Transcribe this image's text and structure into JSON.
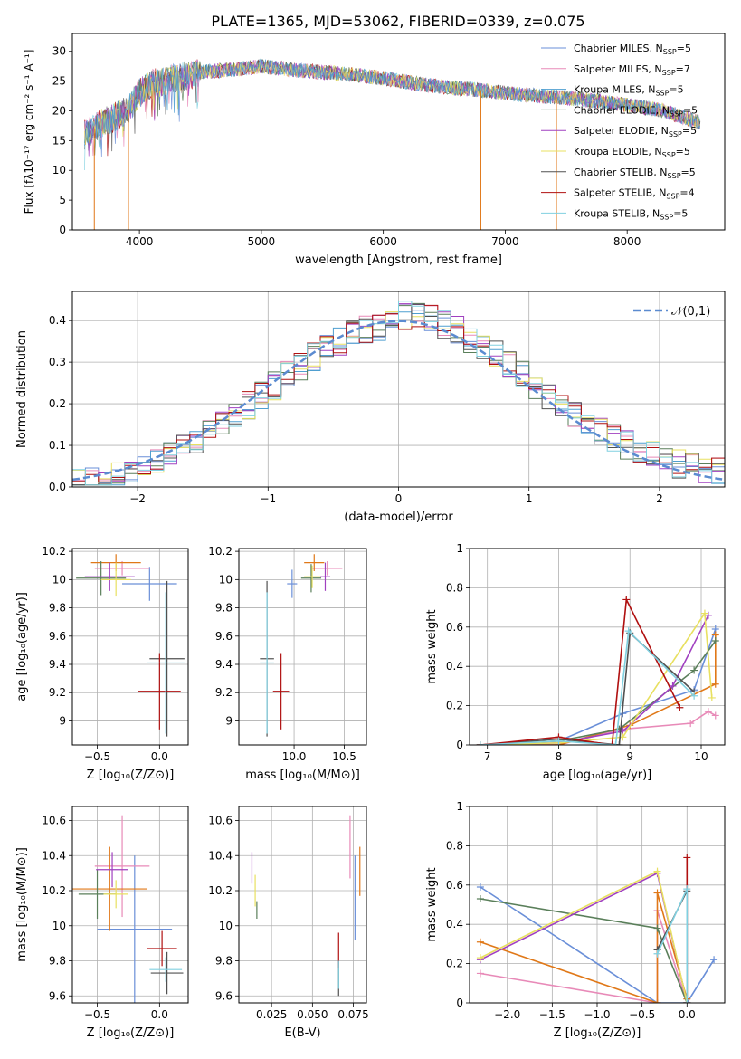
{
  "figure_title": "PLATE=1365, MJD=53062, FIBERID=0339, z=0.075",
  "model_colors": [
    "#6a8fd8",
    "#e88ab8",
    "#4f9fd0",
    "#5a7f5a",
    "#a040c0",
    "#e8e060",
    "#505050",
    "#b01010",
    "#80d0e0"
  ],
  "chart_data": [
    {
      "id": "spectrum",
      "type": "line",
      "title": "PLATE=1365, MJD=53062, FIBERID=0339, z=0.075",
      "xlabel": "wavelength [Angstrom, rest frame]",
      "ylabel": "Flux [fλ10⁻¹⁷ erg cm⁻² s⁻¹ A⁻¹]",
      "xlim": [
        3450,
        8800
      ],
      "ylim": [
        0,
        33
      ],
      "xticks": [
        4000,
        5000,
        6000,
        7000,
        8000
      ],
      "yticks": [
        0,
        5,
        10,
        15,
        20,
        25,
        30
      ],
      "grid": false,
      "legend_position": "upper-right",
      "legend": [
        {
          "label": "Chabrier MILES, N",
          "sub": "SSP",
          "suffix": "=5",
          "color": "#6a8fd8"
        },
        {
          "label": "Salpeter MILES, N",
          "sub": "SSP",
          "suffix": "=7",
          "color": "#e88ab8"
        },
        {
          "label": "Kroupa MILES, N",
          "sub": "SSP",
          "suffix": "=5",
          "color": "#4f9fd0"
        },
        {
          "label": "Chabrier ELODIE, N",
          "sub": "SSP",
          "suffix": "=5",
          "color": "#5a7f5a"
        },
        {
          "label": "Salpeter ELODIE, N",
          "sub": "SSP",
          "suffix": "=5",
          "color": "#a040c0"
        },
        {
          "label": "Kroupa ELODIE, N",
          "sub": "SSP",
          "suffix": "=5",
          "color": "#e8e060"
        },
        {
          "label": "Chabrier STELIB, N",
          "sub": "SSP",
          "suffix": "=5",
          "color": "#505050"
        },
        {
          "label": "Salpeter STELIB, N",
          "sub": "SSP",
          "suffix": "=4",
          "color": "#b01010"
        },
        {
          "label": "Kroupa STELIB, N",
          "sub": "SSP",
          "suffix": "=5",
          "color": "#80d0e0"
        }
      ],
      "continuum_points": [
        [
          3550,
          16
        ],
        [
          3700,
          18
        ],
        [
          3900,
          20
        ],
        [
          4000,
          23
        ],
        [
          4100,
          24.5
        ],
        [
          4300,
          25.5
        ],
        [
          4500,
          26.5
        ],
        [
          4800,
          27
        ],
        [
          5000,
          27.5
        ],
        [
          5200,
          27
        ],
        [
          5500,
          26.5
        ],
        [
          5800,
          26
        ],
        [
          6000,
          25.5
        ],
        [
          6300,
          24.5
        ],
        [
          6500,
          24
        ],
        [
          6800,
          23.5
        ],
        [
          7000,
          23
        ],
        [
          7300,
          22.5
        ],
        [
          7600,
          22
        ],
        [
          8000,
          21
        ],
        [
          8300,
          20
        ],
        [
          8600,
          18
        ]
      ],
      "absorption_drops": [
        [
          3630,
          0
        ],
        [
          3910,
          0
        ],
        [
          6800,
          0
        ],
        [
          7420,
          0
        ],
        [
          3910,
          8.5
        ]
      ]
    },
    {
      "id": "residuals",
      "type": "histogram",
      "xlabel": "(data-model)/error",
      "ylabel": "Normed distribution",
      "xlim": [
        -2.5,
        2.5
      ],
      "ylim": [
        0,
        0.47
      ],
      "xticks": [
        -2,
        -1,
        0,
        1,
        2
      ],
      "yticks": [
        0.0,
        0.1,
        0.2,
        0.3,
        0.4
      ],
      "grid": true,
      "legend_position": "upper-right",
      "legend": [
        {
          "label": "𝒩(0,1)",
          "color": "#5b8bd0",
          "style": "dashed"
        }
      ],
      "gaussian": {
        "mean": 0,
        "sigma": 1
      },
      "bin_width": 0.1
    },
    {
      "id": "age-vs-z",
      "type": "errorbar",
      "xlabel": "Z [log₁₀(Z/Z⊙)]",
      "ylabel": "age  [log₁₀(age/yr)]",
      "xlim": [
        -0.7,
        0.23
      ],
      "ylim": [
        8.83,
        10.22
      ],
      "xticks": [
        -0.5,
        0.0
      ],
      "xticklabels": [
        "−0.5",
        "0.0"
      ],
      "yticks": [
        9.0,
        9.2,
        9.4,
        9.6,
        9.8,
        10.0,
        10.2
      ],
      "grid": true,
      "points": [
        {
          "x": -0.08,
          "y": 9.97,
          "xerr": 0.22,
          "yerr": 0.12,
          "color": "#6a8fd8"
        },
        {
          "x": -0.3,
          "y": 10.08,
          "xerr": 0.22,
          "yerr": 0.05,
          "color": "#e88ab8"
        },
        {
          "x": -0.35,
          "y": 10.12,
          "xerr": 0.2,
          "yerr": 0.06,
          "color": "#e07818"
        },
        {
          "x": -0.47,
          "y": 10.01,
          "xerr": 0.2,
          "yerr": 0.12,
          "color": "#5a7f5a"
        },
        {
          "x": -0.4,
          "y": 10.02,
          "xerr": 0.2,
          "yerr": 0.1,
          "color": "#a040c0"
        },
        {
          "x": -0.35,
          "y": 10.0,
          "xerr": 0.12,
          "yerr": 0.12,
          "color": "#e8e060"
        },
        {
          "x": 0.06,
          "y": 9.44,
          "xerr": 0.14,
          "yerr": 0.55,
          "color": "#505050"
        },
        {
          "x": 0.0,
          "y": 9.21,
          "xerr": 0.17,
          "yerr": 0.27,
          "color": "#b01010"
        },
        {
          "x": 0.05,
          "y": 9.41,
          "xerr": 0.15,
          "yerr": 0.5,
          "color": "#80d0e0"
        }
      ]
    },
    {
      "id": "age-vs-mass",
      "type": "errorbar",
      "xlabel": "mass [log₁₀(M/M⊙)]",
      "ylabel": "",
      "xlim": [
        9.45,
        10.72
      ],
      "ylim": [
        8.83,
        10.22
      ],
      "xticks": [
        10.0,
        10.5
      ],
      "xticklabels": [
        "10.0",
        "10.5"
      ],
      "yticks": [
        9.0,
        9.2,
        9.4,
        9.6,
        9.8,
        10.0,
        10.2
      ],
      "grid": true,
      "points": [
        {
          "x": 9.98,
          "y": 9.97,
          "xerr": 0.05,
          "yerr": 0.1,
          "color": "#6a8fd8"
        },
        {
          "x": 10.33,
          "y": 10.08,
          "xerr": 0.15,
          "yerr": 0.05,
          "color": "#e88ab8"
        },
        {
          "x": 10.2,
          "y": 10.12,
          "xerr": 0.1,
          "yerr": 0.06,
          "color": "#e07818"
        },
        {
          "x": 10.17,
          "y": 10.01,
          "xerr": 0.1,
          "yerr": 0.1,
          "color": "#5a7f5a"
        },
        {
          "x": 10.31,
          "y": 10.02,
          "xerr": 0.05,
          "yerr": 0.1,
          "color": "#a040c0"
        },
        {
          "x": 10.18,
          "y": 10.02,
          "xerr": 0.08,
          "yerr": 0.08,
          "color": "#e8e060"
        },
        {
          "x": 9.73,
          "y": 9.44,
          "xerr": 0.07,
          "yerr": 0.55,
          "color": "#505050"
        },
        {
          "x": 9.87,
          "y": 9.21,
          "xerr": 0.08,
          "yerr": 0.27,
          "color": "#b01010"
        },
        {
          "x": 9.73,
          "y": 9.41,
          "xerr": 0.07,
          "yerr": 0.5,
          "color": "#80d0e0"
        }
      ]
    },
    {
      "id": "mass-weight-vs-age",
      "type": "line",
      "xlabel": "age  [log₁₀(age/yr)]",
      "ylabel": "mass weight",
      "xlim": [
        6.75,
        10.33
      ],
      "ylim": [
        0,
        1.0
      ],
      "xticks": [
        7,
        8,
        9,
        10
      ],
      "yticks": [
        0.0,
        0.2,
        0.4,
        0.6,
        0.8,
        1.0
      ],
      "grid": true,
      "series": [
        {
          "color": "#6a8fd8",
          "points": [
            [
              6.9,
              0.0
            ],
            [
              8.0,
              0.02
            ],
            [
              8.9,
              0.16
            ],
            [
              9.9,
              0.28
            ],
            [
              10.2,
              0.59
            ]
          ]
        },
        {
          "color": "#e88ab8",
          "points": [
            [
              6.9,
              0.0
            ],
            [
              8.0,
              0.0
            ],
            [
              8.9,
              0.08
            ],
            [
              9.85,
              0.11
            ],
            [
              10.1,
              0.17
            ],
            [
              10.2,
              0.15
            ]
          ]
        },
        {
          "color": "#e07818",
          "points": [
            [
              6.9,
              0.0
            ],
            [
              8.0,
              0.0
            ],
            [
              9.0,
              0.1
            ],
            [
              10.2,
              0.31
            ],
            [
              10.2,
              0.56
            ]
          ]
        },
        {
          "color": "#5a7f5a",
          "points": [
            [
              6.9,
              0.0
            ],
            [
              8.0,
              0.02
            ],
            [
              8.85,
              0.08
            ],
            [
              9.9,
              0.38
            ],
            [
              10.2,
              0.53
            ]
          ]
        },
        {
          "color": "#a040c0",
          "points": [
            [
              6.9,
              0.0
            ],
            [
              8.0,
              0.01
            ],
            [
              8.9,
              0.07
            ],
            [
              9.6,
              0.3
            ],
            [
              10.1,
              0.66
            ]
          ]
        },
        {
          "color": "#e8e060",
          "points": [
            [
              6.9,
              0.0
            ],
            [
              8.0,
              0.01
            ],
            [
              8.9,
              0.04
            ],
            [
              10.05,
              0.67
            ],
            [
              10.15,
              0.24
            ]
          ]
        },
        {
          "color": "#505050",
          "points": [
            [
              6.9,
              0.0
            ],
            [
              8.0,
              0.03
            ],
            [
              8.85,
              0.0
            ],
            [
              9.0,
              0.57
            ],
            [
              9.9,
              0.27
            ]
          ]
        },
        {
          "color": "#b01010",
          "points": [
            [
              6.9,
              0.0
            ],
            [
              8.0,
              0.04
            ],
            [
              8.75,
              0.0
            ],
            [
              8.95,
              0.74
            ],
            [
              9.7,
              0.19
            ]
          ]
        },
        {
          "color": "#80d0e0",
          "points": [
            [
              6.9,
              0.0
            ],
            [
              8.0,
              0.02
            ],
            [
              8.8,
              0.0
            ],
            [
              8.98,
              0.58
            ],
            [
              9.9,
              0.25
            ]
          ]
        }
      ]
    },
    {
      "id": "mass-vs-z",
      "type": "errorbar",
      "xlabel": "Z [log₁₀(Z/Z⊙)]",
      "ylabel": "mass [log₁₀(M/M⊙)]",
      "xlim": [
        -0.7,
        0.23
      ],
      "ylim": [
        9.56,
        10.68
      ],
      "xticks": [
        -0.5,
        0.0
      ],
      "xticklabels": [
        "−0.5",
        "0.0"
      ],
      "yticks": [
        9.6,
        9.8,
        10.0,
        10.2,
        10.4,
        10.6
      ],
      "grid": true,
      "points": [
        {
          "x": -0.2,
          "y": 9.98,
          "xerr": 0.3,
          "yerr": 0.42,
          "color": "#6a8fd8"
        },
        {
          "x": -0.3,
          "y": 10.34,
          "xerr": 0.22,
          "yerr": 0.29,
          "color": "#e88ab8"
        },
        {
          "x": -0.4,
          "y": 10.21,
          "xerr": 0.3,
          "yerr": 0.24,
          "color": "#e07818"
        },
        {
          "x": -0.5,
          "y": 10.18,
          "xerr": 0.15,
          "yerr": 0.14,
          "color": "#5a7f5a"
        },
        {
          "x": -0.38,
          "y": 10.32,
          "xerr": 0.13,
          "yerr": 0.1,
          "color": "#a040c0"
        },
        {
          "x": -0.35,
          "y": 10.18,
          "xerr": 0.1,
          "yerr": 0.08,
          "color": "#e8e060"
        },
        {
          "x": 0.06,
          "y": 9.73,
          "xerr": 0.13,
          "yerr": 0.12,
          "color": "#505050"
        },
        {
          "x": 0.02,
          "y": 9.87,
          "xerr": 0.12,
          "yerr": 0.1,
          "color": "#b01010"
        },
        {
          "x": 0.05,
          "y": 9.75,
          "xerr": 0.13,
          "yerr": 0.07,
          "color": "#80d0e0"
        }
      ]
    },
    {
      "id": "mass-vs-ebv",
      "type": "errorbar",
      "xlabel": "E(B-V)",
      "ylabel": "",
      "xlim": [
        0.005,
        0.083
      ],
      "ylim": [
        9.56,
        10.68
      ],
      "xticks": [
        0.025,
        0.05,
        0.075
      ],
      "xticklabels": [
        "0.025",
        "0.050",
        "0.075"
      ],
      "yticks": [
        9.6,
        9.8,
        10.0,
        10.2,
        10.4,
        10.6
      ],
      "grid": true,
      "points": [
        {
          "x": 0.076,
          "y": 10.16,
          "xerr": 0,
          "yerr": 0.24,
          "color": "#6a8fd8"
        },
        {
          "x": 0.073,
          "y": 10.45,
          "xerr": 0,
          "yerr": 0.18,
          "color": "#e88ab8"
        },
        {
          "x": 0.079,
          "y": 10.31,
          "xerr": 0,
          "yerr": 0.14,
          "color": "#e07818"
        },
        {
          "x": 0.016,
          "y": 10.09,
          "xerr": 0,
          "yerr": 0.05,
          "color": "#5a7f5a"
        },
        {
          "x": 0.013,
          "y": 10.33,
          "xerr": 0,
          "yerr": 0.09,
          "color": "#a040c0"
        },
        {
          "x": 0.015,
          "y": 10.2,
          "xerr": 0,
          "yerr": 0.09,
          "color": "#e8e060"
        },
        {
          "x": 0.066,
          "y": 9.7,
          "xerr": 0,
          "yerr": 0.1,
          "color": "#505050"
        },
        {
          "x": 0.066,
          "y": 9.86,
          "xerr": 0,
          "yerr": 0.1,
          "color": "#b01010"
        },
        {
          "x": 0.066,
          "y": 9.72,
          "xerr": 0,
          "yerr": 0.08,
          "color": "#80d0e0"
        }
      ]
    },
    {
      "id": "mass-weight-vs-z",
      "type": "line",
      "xlabel": "Z [log₁₀(Z/Z⊙)]",
      "ylabel": "mass weight",
      "xlim": [
        -2.42,
        0.42
      ],
      "ylim": [
        0,
        1.0
      ],
      "xticks": [
        -2.0,
        -1.5,
        -1.0,
        -0.5,
        0.0
      ],
      "xticklabels": [
        "−2.0",
        "−1.5",
        "−1.0",
        "−0.5",
        "0.0"
      ],
      "yticks": [
        0.0,
        0.2,
        0.4,
        0.6,
        0.8,
        1.0
      ],
      "grid": true,
      "series": [
        {
          "color": "#6a8fd8",
          "points": [
            [
              -2.3,
              0.59
            ],
            [
              -0.33,
              0.0
            ],
            [
              0.0,
              0.0
            ],
            [
              0.3,
              0.22
            ]
          ]
        },
        {
          "color": "#e88ab8",
          "points": [
            [
              -2.3,
              0.15
            ],
            [
              -0.33,
              0.0
            ],
            [
              -0.33,
              0.47
            ],
            [
              0.0,
              0.0
            ]
          ]
        },
        {
          "color": "#e07818",
          "points": [
            [
              -2.3,
              0.31
            ],
            [
              -0.33,
              0.0
            ],
            [
              -0.33,
              0.56
            ],
            [
              0.0,
              0.02
            ]
          ]
        },
        {
          "color": "#5a7f5a",
          "points": [
            [
              -2.3,
              0.53
            ],
            [
              -0.33,
              0.38
            ],
            [
              0.0,
              0.0
            ]
          ]
        },
        {
          "color": "#a040c0",
          "points": [
            [
              -2.3,
              0.22
            ],
            [
              -0.33,
              0.66
            ],
            [
              0.0,
              0.0
            ]
          ]
        },
        {
          "color": "#e8e060",
          "points": [
            [
              -2.3,
              0.23
            ],
            [
              -0.33,
              0.67
            ],
            [
              0.0,
              0.0
            ]
          ]
        },
        {
          "color": "#505050",
          "points": [
            [
              -0.33,
              0.27
            ],
            [
              0.0,
              0.57
            ],
            [
              0.0,
              0.0
            ]
          ]
        },
        {
          "color": "#b01010",
          "points": [
            [
              0.0,
              0.74
            ],
            [
              0.0,
              0.0
            ]
          ]
        },
        {
          "color": "#80d0e0",
          "points": [
            [
              -0.33,
              0.25
            ],
            [
              0.0,
              0.58
            ],
            [
              0.0,
              0.0
            ]
          ]
        }
      ]
    }
  ]
}
